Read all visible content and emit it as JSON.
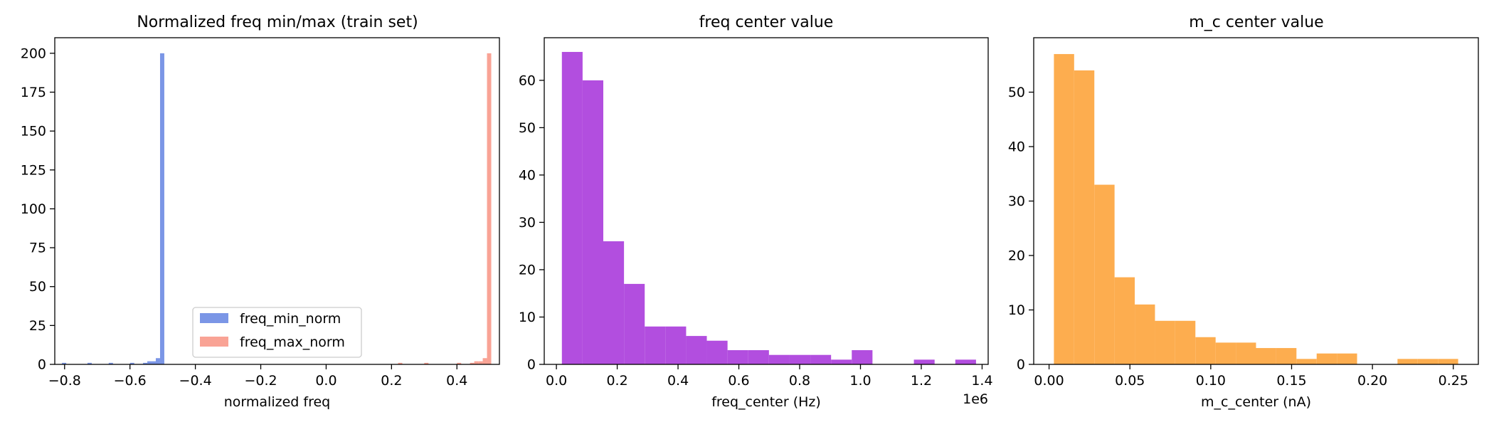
{
  "chart_data": [
    {
      "type": "histogram",
      "title": "Normalized freq min/max (train set)",
      "xlabel": "normalized freq",
      "ylabel": "",
      "xlim": [
        -0.83,
        0.53
      ],
      "ylim": [
        0,
        210
      ],
      "x_ticks": [
        -0.8,
        -0.6,
        -0.4,
        -0.2,
        0.0,
        0.2,
        0.4
      ],
      "x_tick_labels": [
        "−0.8",
        "−0.6",
        "−0.4",
        "−0.2",
        "0.0",
        "0.2",
        "0.4"
      ],
      "y_ticks": [
        0,
        25,
        50,
        75,
        100,
        125,
        150,
        175,
        200
      ],
      "y_tick_labels": [
        "0",
        "25",
        "50",
        "75",
        "100",
        "125",
        "150",
        "175",
        "200"
      ],
      "legend": {
        "position": "lower-center"
      },
      "series": [
        {
          "name": "freq_min_norm",
          "color": "#7b96e6",
          "bins": [
            {
              "x0": -0.808,
              "x1": -0.795,
              "count": 1
            },
            {
              "x0": -0.73,
              "x1": -0.717,
              "count": 1
            },
            {
              "x0": -0.665,
              "x1": -0.652,
              "count": 1
            },
            {
              "x0": -0.6,
              "x1": -0.587,
              "count": 1
            },
            {
              "x0": -0.56,
              "x1": -0.547,
              "count": 1
            },
            {
              "x0": -0.547,
              "x1": -0.534,
              "count": 2
            },
            {
              "x0": -0.534,
              "x1": -0.521,
              "count": 2
            },
            {
              "x0": -0.521,
              "x1": -0.508,
              "count": 4
            },
            {
              "x0": -0.508,
              "x1": -0.495,
              "count": 200
            }
          ]
        },
        {
          "name": "freq_max_norm",
          "color": "#f9a395",
          "bins": [
            {
              "x0": 0.22,
              "x1": 0.233,
              "count": 1
            },
            {
              "x0": 0.3,
              "x1": 0.313,
              "count": 1
            },
            {
              "x0": 0.4,
              "x1": 0.413,
              "count": 1
            },
            {
              "x0": 0.44,
              "x1": 0.453,
              "count": 1
            },
            {
              "x0": 0.453,
              "x1": 0.466,
              "count": 2
            },
            {
              "x0": 0.466,
              "x1": 0.479,
              "count": 2
            },
            {
              "x0": 0.479,
              "x1": 0.492,
              "count": 4
            },
            {
              "x0": 0.492,
              "x1": 0.505,
              "count": 200
            }
          ]
        }
      ]
    },
    {
      "type": "histogram",
      "title": "freq center value",
      "xlabel": "freq_center (Hz)",
      "ylabel": "",
      "offset_text": "1e6",
      "xlim": [
        -0.04,
        1.42
      ],
      "ylim": [
        0,
        69
      ],
      "x_ticks": [
        0.0,
        0.2,
        0.4,
        0.6,
        0.8,
        1.0,
        1.2,
        1.4
      ],
      "x_tick_labels": [
        "0.0",
        "0.2",
        "0.4",
        "0.6",
        "0.8",
        "1.0",
        "1.2",
        "1.4"
      ],
      "y_ticks": [
        0,
        10,
        20,
        30,
        40,
        50,
        60
      ],
      "y_tick_labels": [
        "0",
        "10",
        "20",
        "30",
        "40",
        "50",
        "60"
      ],
      "series": [
        {
          "color": "#b24edf",
          "bin_start": 0.018,
          "bin_width": 0.0681,
          "counts": [
            66,
            60,
            26,
            17,
            8,
            8,
            6,
            5,
            3,
            3,
            2,
            2,
            2,
            1,
            3,
            0,
            0,
            1,
            0,
            1
          ]
        }
      ]
    },
    {
      "type": "histogram",
      "title": "m_c center value",
      "xlabel": "m_c_center (nA)",
      "ylabel": "",
      "xlim": [
        -0.0095,
        0.2655
      ],
      "ylim": [
        0,
        60
      ],
      "x_ticks": [
        0.0,
        0.05,
        0.1,
        0.15,
        0.2,
        0.25
      ],
      "x_tick_labels": [
        "0.00",
        "0.05",
        "0.10",
        "0.15",
        "0.20",
        "0.25"
      ],
      "y_ticks": [
        0,
        10,
        20,
        30,
        40,
        50
      ],
      "y_tick_labels": [
        "0",
        "10",
        "20",
        "30",
        "40",
        "50"
      ],
      "series": [
        {
          "color": "#fdad4f",
          "bin_start": 0.003,
          "bin_width": 0.0125,
          "counts": [
            57,
            54,
            33,
            16,
            11,
            8,
            8,
            5,
            4,
            4,
            3,
            3,
            1,
            2,
            2,
            0,
            0,
            1,
            1,
            1
          ]
        }
      ]
    }
  ]
}
